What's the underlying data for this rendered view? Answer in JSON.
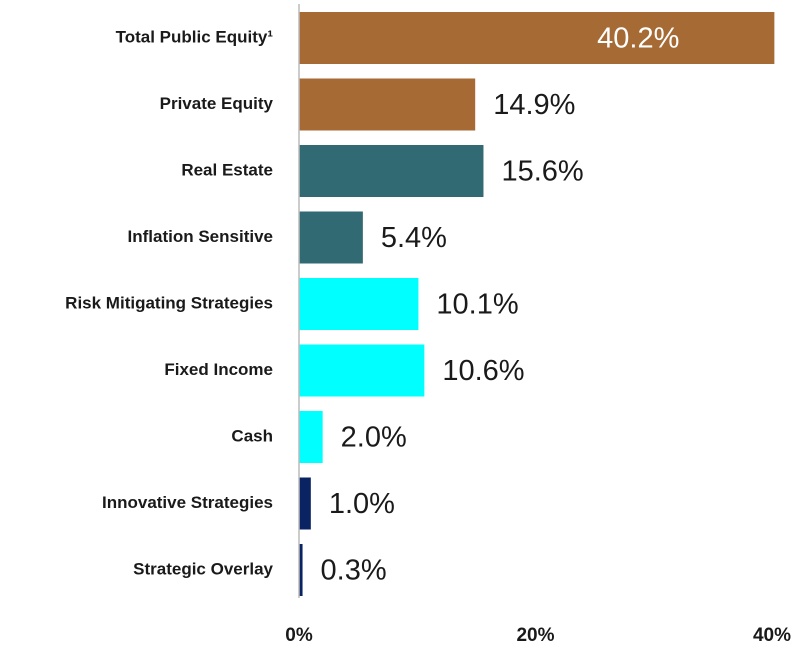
{
  "chart_data": {
    "type": "bar",
    "orientation": "horizontal",
    "categories": [
      "Total Public Equity¹",
      "Private Equity",
      "Real Estate",
      "Inflation Sensitive",
      "Risk Mitigating Strategies",
      "Fixed Income",
      "Cash",
      "Innovative Strategies",
      "Strategic Overlay"
    ],
    "values": [
      40.2,
      14.9,
      15.6,
      5.4,
      10.1,
      10.6,
      2.0,
      1.0,
      0.3
    ],
    "value_labels": [
      "40.2%",
      "14.9%",
      "15.6%",
      "5.4%",
      "10.1%",
      "10.6%",
      "2.0%",
      "1.0%",
      "0.3%"
    ],
    "colors": [
      "#a66a35",
      "#a66a35",
      "#316a72",
      "#316a72",
      "#00ffff",
      "#00ffff",
      "#00ffff",
      "#0a2362",
      "#0a2362"
    ],
    "xlim": [
      0,
      40
    ],
    "xticks": [
      {
        "value": 0,
        "label": "0%"
      },
      {
        "value": 20,
        "label": "20%"
      },
      {
        "value": 40,
        "label": "40%"
      }
    ],
    "grid": false
  }
}
